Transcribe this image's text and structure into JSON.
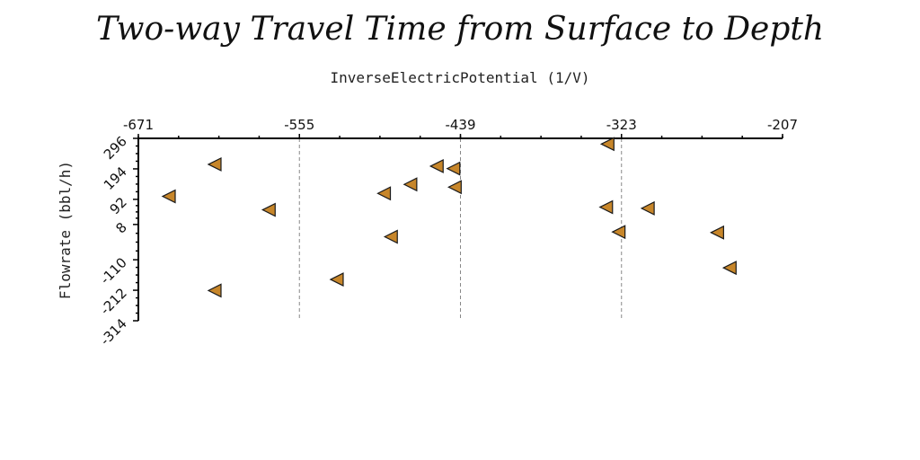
{
  "chart_data": {
    "type": "scatter",
    "title": "Two-way Travel Time from Surface to Depth",
    "xlabel": "InverseElectricPotential (1/V)",
    "ylabel": "Flowrate (bbl/h)",
    "xlim": [
      -671,
      -207
    ],
    "ylim": [
      -314,
      296
    ],
    "x_ticks": [
      -671,
      -555,
      -439,
      -323,
      -207
    ],
    "y_ticks": [
      296,
      194,
      92,
      8,
      -110,
      -212,
      -314
    ],
    "x_tick_labels": [
      "-671",
      "-555",
      "-439",
      "-323",
      "-207"
    ],
    "y_tick_labels": [
      "296",
      "194",
      "92",
      "8",
      "-110",
      "-212",
      "-314"
    ],
    "grid_x": true,
    "grid_y": false,
    "marker": "triangle-left",
    "marker_color": "#c7862a",
    "points": [
      {
        "x": -333,
        "y": 277
      },
      {
        "x": -616,
        "y": 209
      },
      {
        "x": -456,
        "y": 203
      },
      {
        "x": -444,
        "y": 195
      },
      {
        "x": -475,
        "y": 142
      },
      {
        "x": -443,
        "y": 133
      },
      {
        "x": -494,
        "y": 112
      },
      {
        "x": -649,
        "y": 102
      },
      {
        "x": -334,
        "y": 66
      },
      {
        "x": -304,
        "y": 62
      },
      {
        "x": -577,
        "y": 57
      },
      {
        "x": -325,
        "y": -17
      },
      {
        "x": -254,
        "y": -19
      },
      {
        "x": -489,
        "y": -33
      },
      {
        "x": -245,
        "y": -137
      },
      {
        "x": -528,
        "y": -176
      },
      {
        "x": -616,
        "y": -213
      }
    ]
  }
}
